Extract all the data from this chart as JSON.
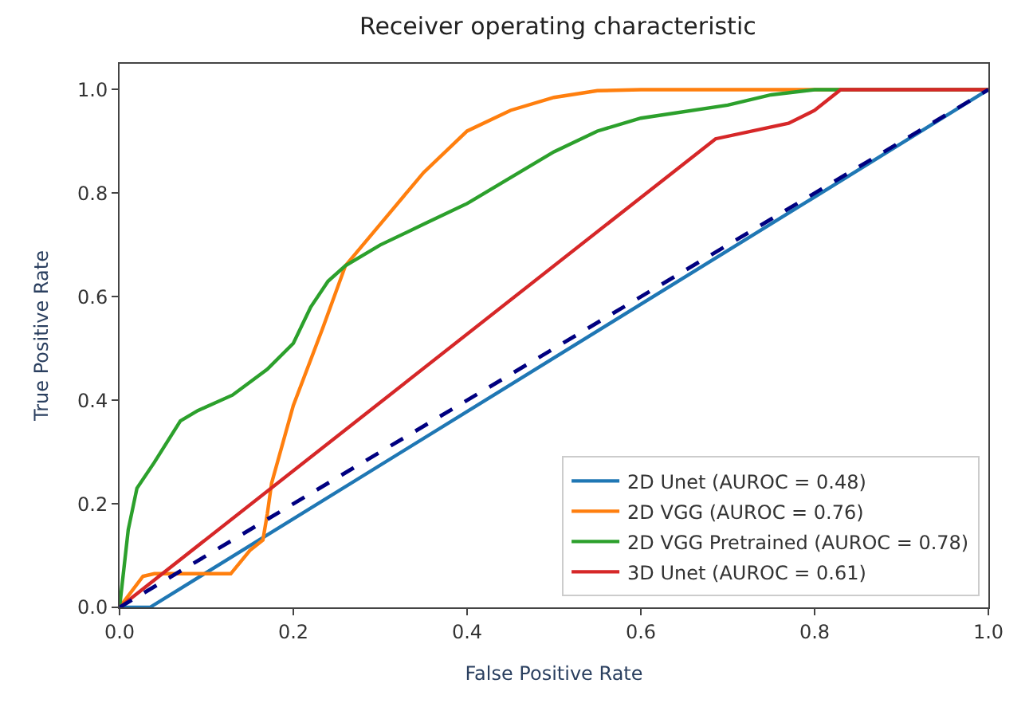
{
  "chart_data": {
    "type": "line",
    "title": "Receiver operating characteristic",
    "xlabel": "False Positive Rate",
    "ylabel": "True Positive Rate",
    "xlim": [
      0,
      1
    ],
    "ylim": [
      0,
      1.05
    ],
    "xticks": [
      {
        "value": 0,
        "label": "0.0"
      },
      0.2,
      0.4,
      0.6,
      0.8,
      {
        "value": 1,
        "label": "1.0"
      }
    ],
    "yticks": [
      {
        "value": 0,
        "label": "0.0"
      },
      0.2,
      0.4,
      0.6,
      0.8,
      {
        "value": 1,
        "label": "1.0"
      }
    ],
    "legend": "bottom right",
    "marker": "none",
    "series": [
      {
        "name": "2D Unet (AUROC = 0.48)",
        "color": "#1f77b4",
        "x": [
          0,
          0.035,
          1
        ],
        "values": [
          0,
          0,
          1
        ]
      },
      {
        "name": "2D VGG (AUROC = 0.76)",
        "color": "#ff7f0e",
        "x": [
          0,
          0.027,
          0.04,
          0.128,
          0.15,
          0.165,
          0.17,
          0.175,
          0.2,
          0.234,
          0.26,
          0.3,
          0.35,
          0.4,
          0.45,
          0.5,
          0.55,
          0.6,
          1
        ],
        "values": [
          0,
          0.06,
          0.065,
          0.065,
          0.11,
          0.13,
          0.18,
          0.24,
          0.39,
          0.54,
          0.66,
          0.74,
          0.84,
          0.92,
          0.96,
          0.985,
          0.998,
          1,
          1
        ]
      },
      {
        "name": "2D VGG Pretrained (AUROC = 0.78)",
        "color": "#2ca02c",
        "x": [
          0,
          0.01,
          0.02,
          0.04,
          0.07,
          0.09,
          0.13,
          0.17,
          0.2,
          0.22,
          0.24,
          0.26,
          0.3,
          0.35,
          0.4,
          0.45,
          0.5,
          0.55,
          0.6,
          0.7,
          0.75,
          0.8,
          1
        ],
        "values": [
          0,
          0.15,
          0.23,
          0.28,
          0.36,
          0.38,
          0.41,
          0.46,
          0.51,
          0.58,
          0.63,
          0.66,
          0.7,
          0.74,
          0.78,
          0.83,
          0.88,
          0.92,
          0.945,
          0.97,
          0.99,
          1,
          1
        ]
      },
      {
        "name": "3D Unet (AUROC = 0.61)",
        "color": "#d62728",
        "x": [
          0,
          0.686,
          0.77,
          0.8,
          0.83,
          1
        ],
        "values": [
          0,
          0.905,
          0.935,
          0.96,
          1,
          1
        ]
      },
      {
        "color": "#000080",
        "line_style": "dashed",
        "x": [
          0,
          1
        ],
        "values": [
          0,
          1
        ]
      }
    ]
  }
}
